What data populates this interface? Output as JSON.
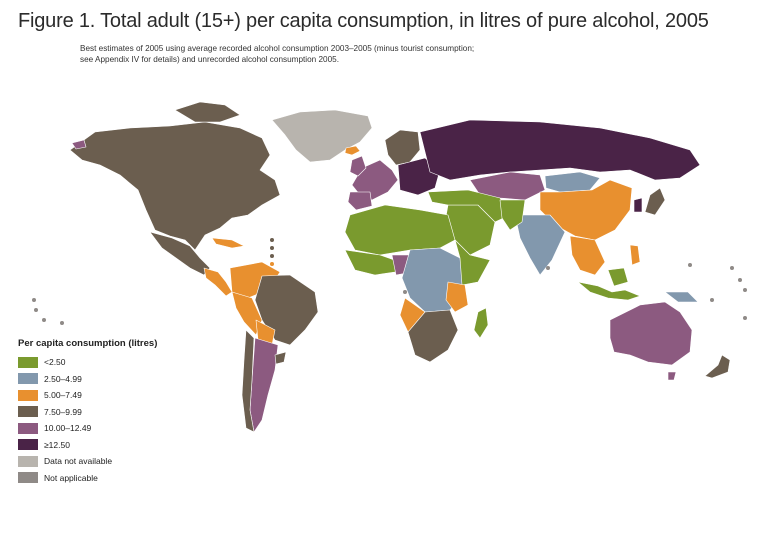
{
  "title": "Figure 1. Total adult (15+) per capita consumption, in litres of pure alcohol, 2005",
  "subtitle_line1": "Best estimates of 2005 using average recorded alcohol consumption 2003–2005 (minus tourist consumption;",
  "subtitle_line2": "see Appendix IV for details) and unrecorded alcohol consumption 2005.",
  "legend": {
    "title": "Per capita consumption (litres)",
    "items": [
      {
        "label": "<2.50",
        "color": "#7a9a2e"
      },
      {
        "label": "2.50–4.99",
        "color": "#8298ad"
      },
      {
        "label": "5.00–7.49",
        "color": "#e8902f"
      },
      {
        "label": "7.50–9.99",
        "color": "#6b5e4f"
      },
      {
        "label": "10.00–12.49",
        "color": "#8c5a80"
      },
      {
        "label": "≥12.50",
        "color": "#4a2347"
      },
      {
        "label": "Data not available",
        "color": "#b8b4ae"
      },
      {
        "label": "Not applicable",
        "color": "#8f8a87"
      }
    ]
  },
  "colors": {
    "lt2_5": "#7a9a2e",
    "2_5_5": "#8298ad",
    "5_7_5": "#e8902f",
    "7_5_10": "#6b5e4f",
    "10_12_5": "#8c5a80",
    "ge12_5": "#4a2347",
    "na": "#b8b4ae",
    "not_applicable": "#8f8a87"
  }
}
